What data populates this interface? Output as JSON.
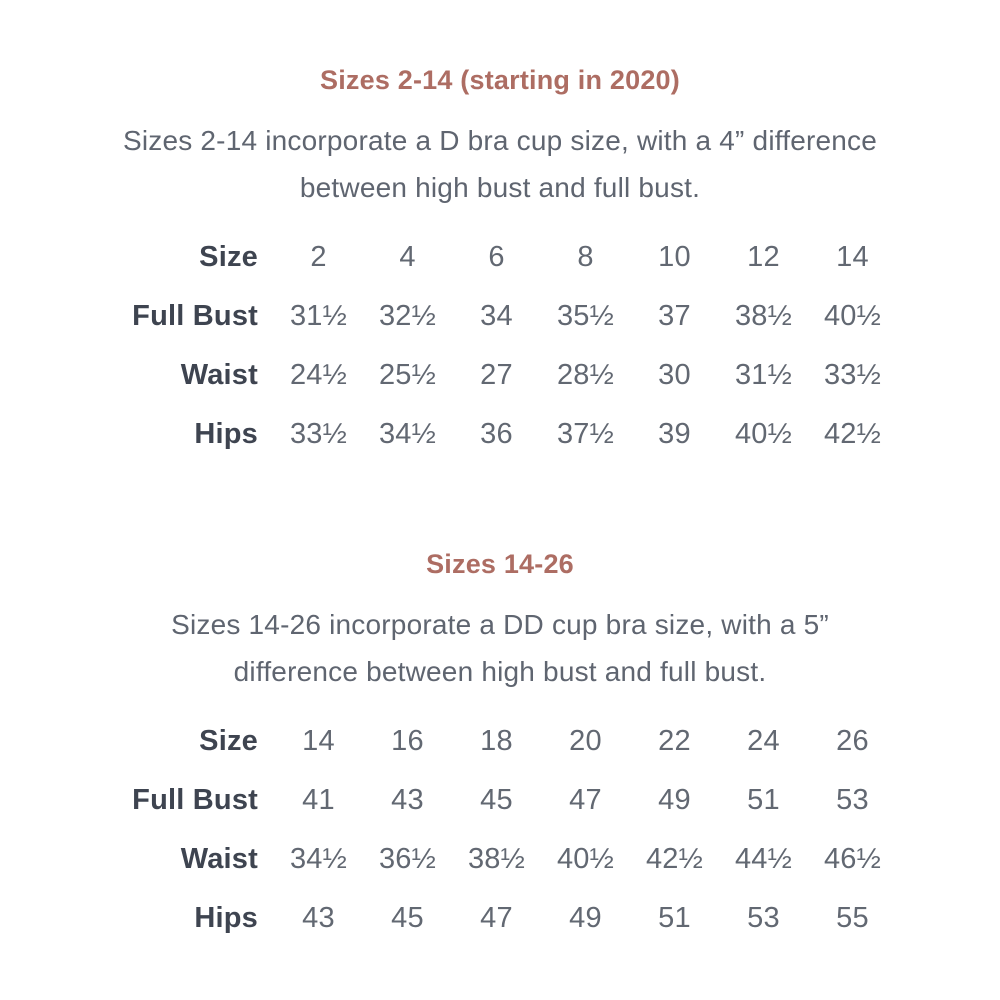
{
  "colors": {
    "background": "#ffffff",
    "heading": "#ad6d63",
    "row_label": "#3e4450",
    "body_text": "#5f6570",
    "table_value": "#626872"
  },
  "sections": [
    {
      "heading": "Sizes 2-14 (starting in 2020)",
      "description": "Sizes 2-14 incorporate a D bra cup size, with a 4” difference between high bust and full bust.",
      "description_lines": [
        "Sizes 2-14 incorporate a D bra cup size, with a 4” difference",
        "between high bust and full bust."
      ],
      "table": {
        "rows": [
          {
            "label": "Size",
            "values": [
              "2",
              "4",
              "6",
              "8",
              "10",
              "12",
              "14"
            ]
          },
          {
            "label": "Full Bust",
            "values": [
              "31½",
              "32½",
              "34",
              "35½",
              "37",
              "38½",
              "40½"
            ]
          },
          {
            "label": "Waist",
            "values": [
              "24½",
              "25½",
              "27",
              "28½",
              "30",
              "31½",
              "33½"
            ]
          },
          {
            "label": "Hips",
            "values": [
              "33½",
              "34½",
              "36",
              "37½",
              "39",
              "40½",
              "42½"
            ]
          }
        ]
      }
    },
    {
      "heading": "Sizes 14-26",
      "description": "Sizes 14-26 incorporate a DD cup bra size, with a 5” difference between high bust and full bust.",
      "description_lines": [
        "Sizes 14-26 incorporate a DD cup bra size, with a 5”",
        "difference between high bust and full bust."
      ],
      "table": {
        "rows": [
          {
            "label": "Size",
            "values": [
              "14",
              "16",
              "18",
              "20",
              "22",
              "24",
              "26"
            ]
          },
          {
            "label": "Full Bust",
            "values": [
              "41",
              "43",
              "45",
              "47",
              "49",
              "51",
              "53"
            ]
          },
          {
            "label": "Waist",
            "values": [
              "34½",
              "36½",
              "38½",
              "40½",
              "42½",
              "44½",
              "46½"
            ]
          },
          {
            "label": "Hips",
            "values": [
              "43",
              "45",
              "47",
              "49",
              "51",
              "53",
              "55"
            ]
          }
        ]
      }
    }
  ]
}
